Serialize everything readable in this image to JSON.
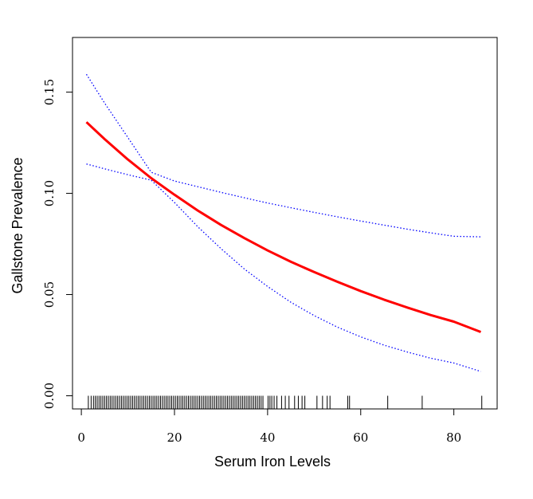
{
  "chart_data": {
    "type": "line",
    "xlabel": "Serum Iron Levels",
    "ylabel": "Gallstone Prevalence",
    "xlim": [
      -1.9,
      89.3
    ],
    "ylim": [
      -0.0065,
      0.177
    ],
    "x_ticks": [
      0,
      20,
      40,
      60,
      80
    ],
    "y_ticks": [
      0.0,
      0.05,
      0.1,
      0.15
    ],
    "x_tick_labels": [
      "0",
      "20",
      "40",
      "60",
      "80"
    ],
    "y_tick_labels": [
      "0.00",
      "0.05",
      "0.10",
      "0.15"
    ],
    "grid": false,
    "legend": "none",
    "series": [
      {
        "role": "fit",
        "color": "#ff0000",
        "style": "solid",
        "x": [
          1.1,
          5,
          10,
          15,
          20,
          25,
          30,
          35,
          40,
          45,
          50,
          55,
          60,
          65,
          70,
          75,
          80,
          85.8
        ],
        "y": [
          0.1352,
          0.1268,
          0.1167,
          0.1075,
          0.0993,
          0.0915,
          0.0844,
          0.0779,
          0.0718,
          0.0662,
          0.0611,
          0.0563,
          0.0517,
          0.0475,
          0.0436,
          0.0399,
          0.0366,
          0.0315
        ]
      },
      {
        "role": "upper-ci",
        "color": "#0000ff",
        "style": "dotted",
        "x": [
          1.1,
          5,
          10,
          15,
          20,
          25,
          30,
          35,
          40,
          45,
          50,
          55,
          60,
          65,
          70,
          75,
          80,
          85.8
        ],
        "y": [
          0.1588,
          0.1446,
          0.1276,
          0.1104,
          0.1061,
          0.1033,
          0.1005,
          0.0978,
          0.0952,
          0.0929,
          0.0906,
          0.0884,
          0.0863,
          0.0843,
          0.0823,
          0.0805,
          0.0788,
          0.0785
        ]
      },
      {
        "role": "lower-ci",
        "color": "#0000ff",
        "style": "dotted",
        "x": [
          1.1,
          5,
          10,
          15,
          20,
          25,
          30,
          35,
          40,
          45,
          50,
          55,
          60,
          65,
          70,
          75,
          80,
          85.8
        ],
        "y": [
          0.1145,
          0.1121,
          0.1092,
          0.1065,
          0.0955,
          0.0835,
          0.0727,
          0.0626,
          0.054,
          0.0462,
          0.0396,
          0.0339,
          0.0291,
          0.025,
          0.0216,
          0.0186,
          0.0162,
          0.012
        ]
      }
    ],
    "rug": {
      "color": "#000000",
      "y_from": -0.0065,
      "y_to": 0.0,
      "x": [
        1.5,
        2.1,
        2.6,
        3.0,
        3.4,
        3.8,
        4.2,
        4.6,
        5.0,
        5.4,
        5.8,
        6.2,
        6.6,
        7.0,
        7.4,
        7.8,
        8.2,
        8.6,
        9.0,
        9.4,
        9.8,
        10.2,
        10.6,
        11.0,
        11.4,
        11.8,
        12.2,
        12.6,
        13.0,
        13.4,
        13.8,
        14.2,
        14.6,
        15.0,
        15.4,
        15.8,
        16.2,
        16.6,
        17.0,
        17.4,
        17.8,
        18.2,
        18.6,
        19.0,
        19.4,
        19.8,
        20.2,
        20.6,
        21.0,
        21.4,
        21.8,
        22.2,
        22.6,
        23.0,
        23.4,
        23.8,
        24.2,
        24.6,
        25.0,
        25.4,
        25.8,
        26.2,
        26.6,
        27.0,
        27.4,
        27.8,
        28.2,
        28.6,
        29.0,
        29.4,
        29.8,
        30.2,
        30.6,
        31.0,
        31.4,
        31.8,
        32.2,
        32.6,
        33.0,
        33.4,
        33.8,
        34.2,
        34.6,
        35.0,
        35.4,
        35.8,
        36.2,
        36.6,
        37.0,
        37.4,
        37.8,
        38.2,
        38.6,
        39.0,
        40.1,
        40.5,
        40.9,
        41.4,
        42.0,
        43.0,
        43.8,
        44.6,
        45.8,
        46.6,
        47.4,
        48.0,
        50.6,
        51.8,
        52.8,
        53.4,
        57.2,
        57.6,
        65.8,
        73.2,
        86.0
      ]
    }
  }
}
